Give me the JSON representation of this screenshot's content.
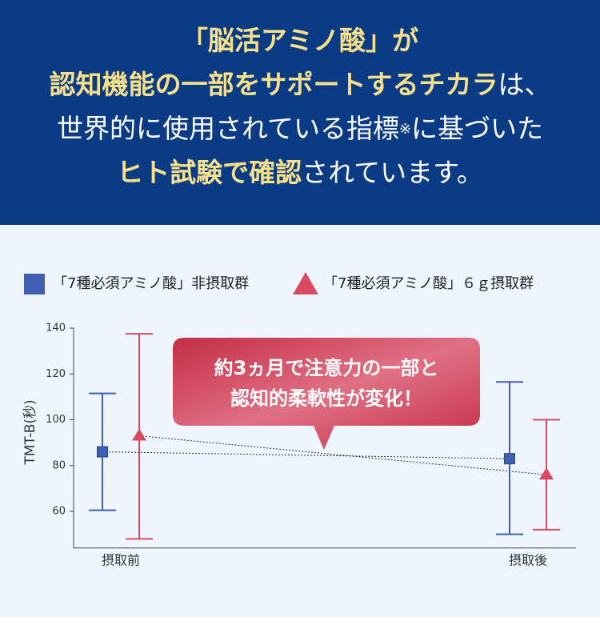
{
  "header": {
    "line1": [
      {
        "text": "「脳活アミノ酸」が",
        "highlight": true
      }
    ],
    "line2": [
      {
        "text": "認知機能の一部をサポートするチカラ",
        "highlight": true
      },
      {
        "text": "は、",
        "highlight": false
      }
    ],
    "line3": [
      {
        "text": "世界的に使用されている指標",
        "highlight": false
      },
      {
        "text": "※",
        "highlight": false,
        "small": true
      },
      {
        "text": "に基づいた",
        "highlight": false
      }
    ],
    "line4": [
      {
        "text": "ヒト試験で確認",
        "highlight": true
      },
      {
        "text": "されています。",
        "highlight": false
      }
    ]
  },
  "chart_data": {
    "type": "errorbar",
    "y_label": "TMT-B(秒)",
    "categories": [
      "摂取前",
      "摂取後"
    ],
    "series": [
      {
        "name": "「7種必須アミノ酸」非摂取群",
        "color": "#3f5fb0",
        "marker": "square",
        "values": [
          86,
          83
        ],
        "low": [
          60.5,
          50
        ],
        "high": [
          111.5,
          116.5
        ]
      },
      {
        "name": "「7種必須アミノ酸」６ｇ摂取群",
        "color": "#d84a62",
        "marker": "triangle",
        "values": [
          93,
          76
        ],
        "low": [
          48,
          52
        ],
        "high": [
          137.5,
          100
        ]
      }
    ],
    "ylim": [
      44,
      140
    ],
    "yticks": [
      60,
      80,
      100,
      120,
      140
    ],
    "annotation": [
      "約3ヵ月で注意力の一部と",
      "認知的柔軟性が変化！"
    ]
  }
}
